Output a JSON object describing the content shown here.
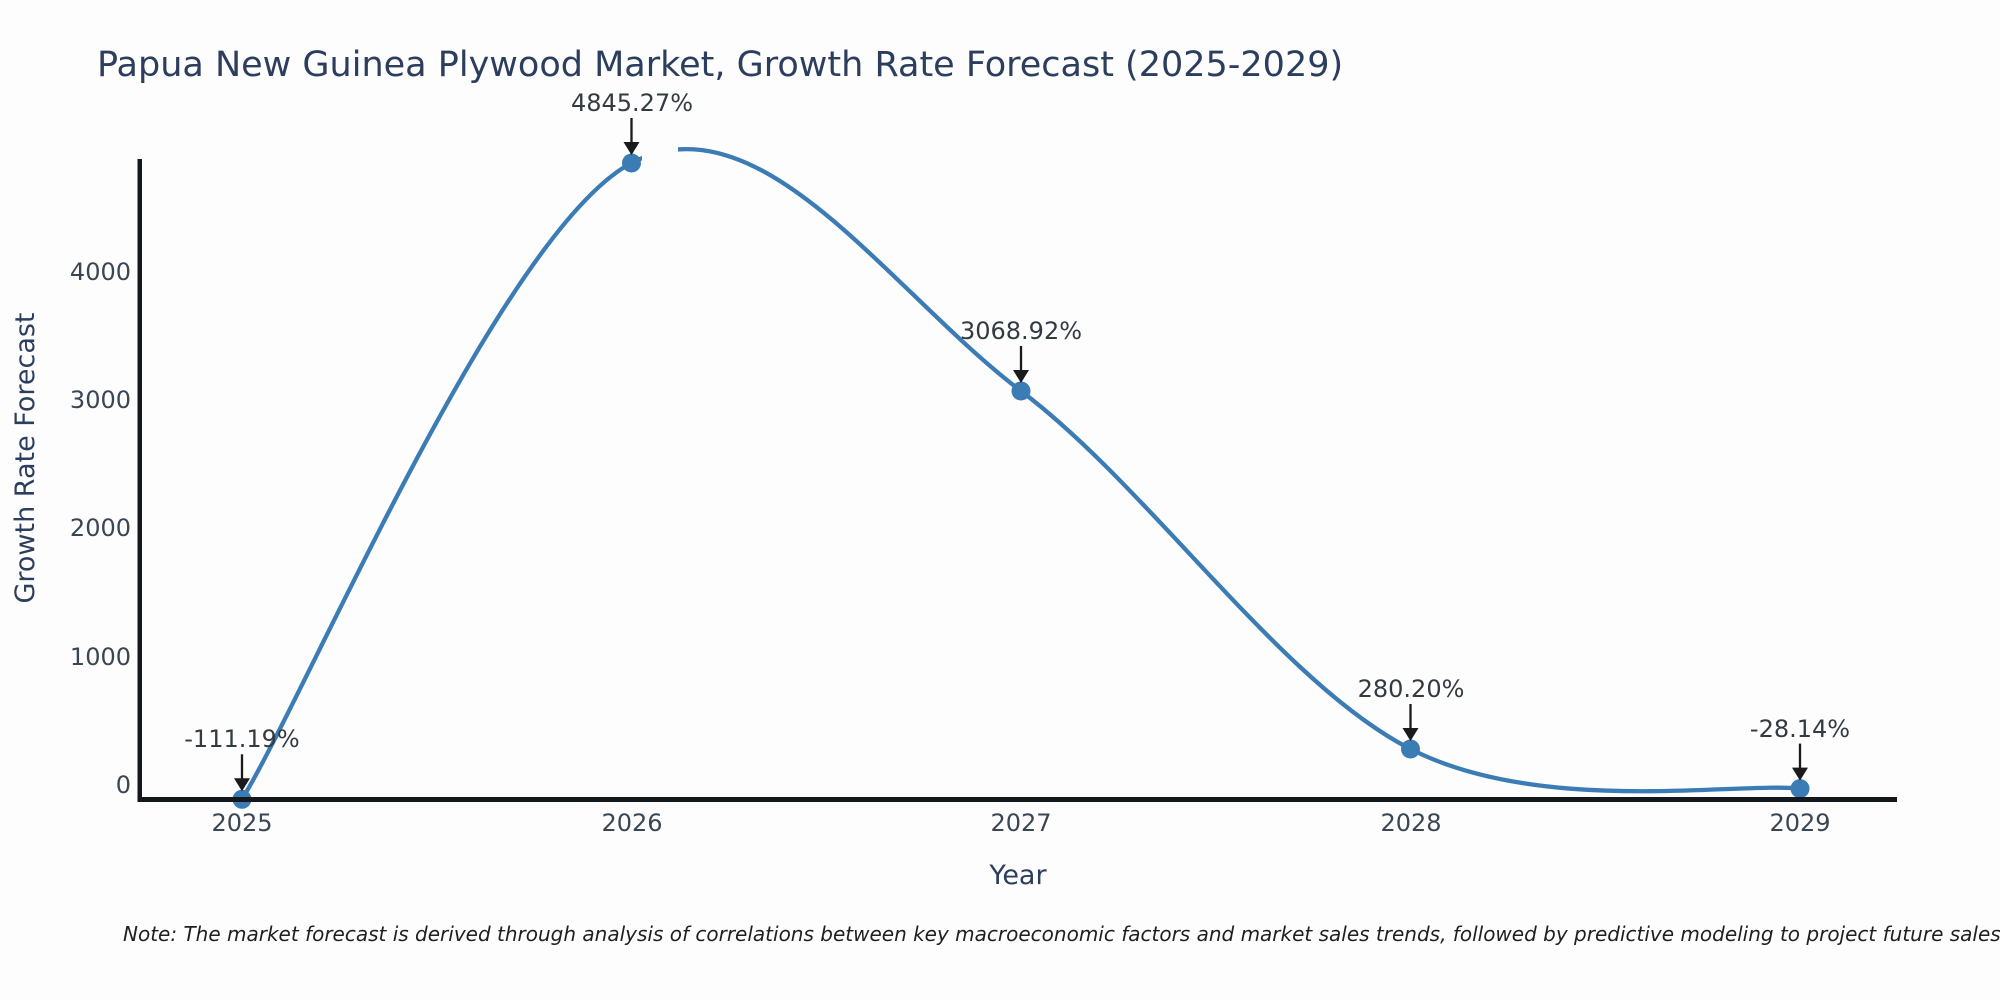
{
  "chart_data": {
    "type": "line",
    "title": "Papua New Guinea Plywood Market, Growth Rate Forecast (2025-2029)",
    "xlabel": "Year",
    "ylabel": "Growth Rate Forecast",
    "x": [
      2025,
      2026,
      2027,
      2028,
      2029
    ],
    "x_tick_labels": [
      "2025",
      "2026",
      "2027",
      "2028",
      "2029"
    ],
    "y_ticks": [
      0,
      1000,
      2000,
      3000,
      4000
    ],
    "y_tick_labels": [
      "0",
      "1000",
      "2000",
      "3000",
      "4000"
    ],
    "ylim": [
      -130,
      4880
    ],
    "grid": false,
    "legend_position": "none",
    "series": [
      {
        "name": "Growth Rate Forecast",
        "values": [
          -111.19,
          4845.27,
          3068.92,
          280.2,
          -28.14
        ]
      }
    ],
    "annotations": [
      {
        "x": 2025,
        "value": -111.19,
        "label": "-111.19%"
      },
      {
        "x": 2026,
        "value": 4845.27,
        "label": "4845.27%"
      },
      {
        "x": 2027,
        "value": 3068.92,
        "label": "3068.92%"
      },
      {
        "x": 2028,
        "value": 280.2,
        "label": "280.20%"
      },
      {
        "x": 2029,
        "value": -28.14,
        "label": "-28.14%"
      }
    ],
    "note": "Note: The market forecast is derived through analysis of correlations between key macroeconomic factors and market sales trends, followed by predictive modeling to project future sales trends."
  },
  "colors": {
    "line": "#3c7cb5",
    "marker": "#3c7cb5",
    "axis": "#14171c",
    "arrow": "#1a1a1a",
    "title_text": "#2c3e5d",
    "tick_text": "#3a4653",
    "annotation_text": "#333a42",
    "note_text": "#1f1f1f",
    "background": "#fdfdfd"
  }
}
